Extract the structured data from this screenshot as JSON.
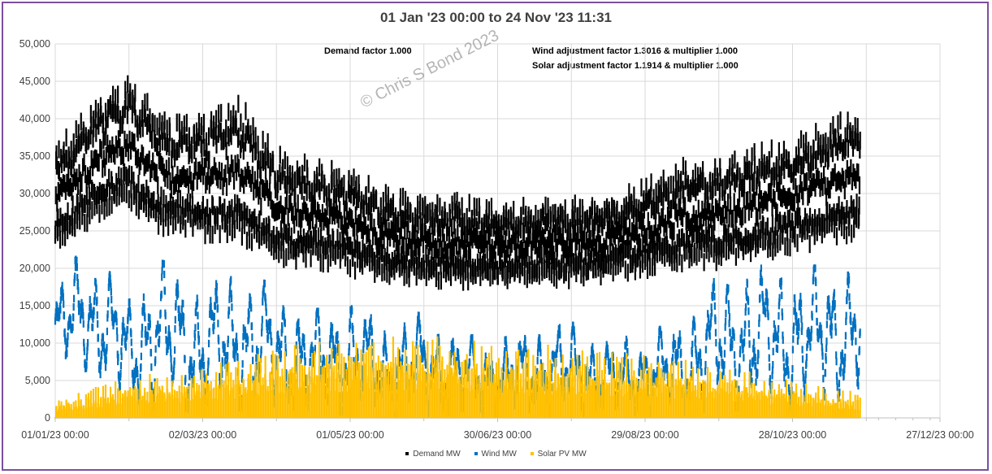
{
  "chart_data": {
    "type": "scatter",
    "title": "01 Jan '23 00:00 to 24 Nov '23 11:31",
    "xlabel": "",
    "ylabel": "",
    "ylim": [
      0,
      50000
    ],
    "y_ticks": [
      "0",
      "5,000",
      "10,000",
      "15,000",
      "20,000",
      "25,000",
      "30,000",
      "35,000",
      "40,000",
      "45,000",
      "50,000"
    ],
    "x_tick_labels": [
      "01/01/23 00:00",
      "02/03/23 00:00",
      "01/05/23 00:00",
      "30/06/23 00:00",
      "29/08/23 00:00",
      "28/10/23 00:00",
      "27/12/23 00:00"
    ],
    "x_tick_days": [
      0,
      60,
      120,
      180,
      240,
      300,
      360
    ],
    "x_minor_tick_days": [
      30,
      90,
      150,
      210,
      270,
      330
    ],
    "xlim_days": [
      0,
      360
    ],
    "data_end_day": 327.5,
    "grid": true,
    "legend_position": "bottom",
    "annotations": [
      "Demand factor 1.000",
      "Wind adjustment factor 1.3016 & multiplier 1.000",
      "Solar adjustment factor 1.1914 & multiplier 1.000"
    ],
    "watermark": "© Chris S Bond  2023",
    "series": [
      {
        "name": "Demand MW",
        "color": "#000000",
        "envelope_days": [
          0,
          10,
          20,
          30,
          40,
          50,
          60,
          75,
          90,
          105,
          120,
          135,
          150,
          165,
          180,
          195,
          210,
          225,
          240,
          255,
          270,
          285,
          300,
          315,
          327
        ],
        "max_values": [
          36000,
          40000,
          44000,
          45500,
          42000,
          40000,
          41000,
          43000,
          36000,
          34000,
          33000,
          30000,
          29000,
          29000,
          28000,
          28500,
          28500,
          29000,
          31000,
          34000,
          34000,
          36000,
          37000,
          40000,
          41000
        ],
        "min_values": [
          22000,
          24000,
          26000,
          27000,
          24000,
          24000,
          23000,
          22000,
          20000,
          20000,
          19000,
          18000,
          18000,
          17500,
          17500,
          18000,
          18000,
          18500,
          19000,
          19500,
          20000,
          20500,
          21500,
          22500,
          23000
        ]
      },
      {
        "name": "Wind MW",
        "color": "#0070c0",
        "envelope_days": [
          0,
          10,
          20,
          30,
          40,
          50,
          60,
          75,
          90,
          105,
          120,
          135,
          150,
          165,
          180,
          195,
          210,
          225,
          240,
          255,
          270,
          285,
          300,
          315,
          327
        ],
        "max_values": [
          17000,
          22000,
          20000,
          16000,
          21000,
          20000,
          17000,
          20000,
          17000,
          14000,
          16000,
          12000,
          14000,
          11000,
          10000,
          12000,
          13000,
          10000,
          11000,
          13000,
          19000,
          20000,
          20000,
          20000,
          21000
        ],
        "min_values": [
          5000,
          7000,
          4000,
          2000,
          1000,
          1000,
          500,
          1000,
          500,
          500,
          500,
          0,
          0,
          0,
          0,
          0,
          0,
          0,
          0,
          500,
          1000,
          1000,
          1000,
          2000,
          3000
        ]
      },
      {
        "name": "Solar PV MW",
        "color": "#ffc000",
        "envelope_days": [
          0,
          10,
          20,
          30,
          40,
          50,
          60,
          75,
          90,
          105,
          120,
          135,
          150,
          165,
          180,
          195,
          210,
          225,
          240,
          255,
          270,
          285,
          300,
          315,
          327
        ],
        "max_values": [
          2500,
          3500,
          4500,
          5500,
          6000,
          6500,
          7000,
          8000,
          9500,
          10500,
          10500,
          11000,
          11000,
          11000,
          10000,
          10000,
          9500,
          9000,
          8500,
          8000,
          7000,
          6000,
          5000,
          4000,
          3500
        ],
        "min_values": [
          0,
          0,
          0,
          0,
          0,
          0,
          0,
          0,
          0,
          0,
          0,
          0,
          0,
          0,
          0,
          0,
          0,
          0,
          0,
          0,
          0,
          0,
          0,
          0,
          0
        ]
      }
    ]
  }
}
